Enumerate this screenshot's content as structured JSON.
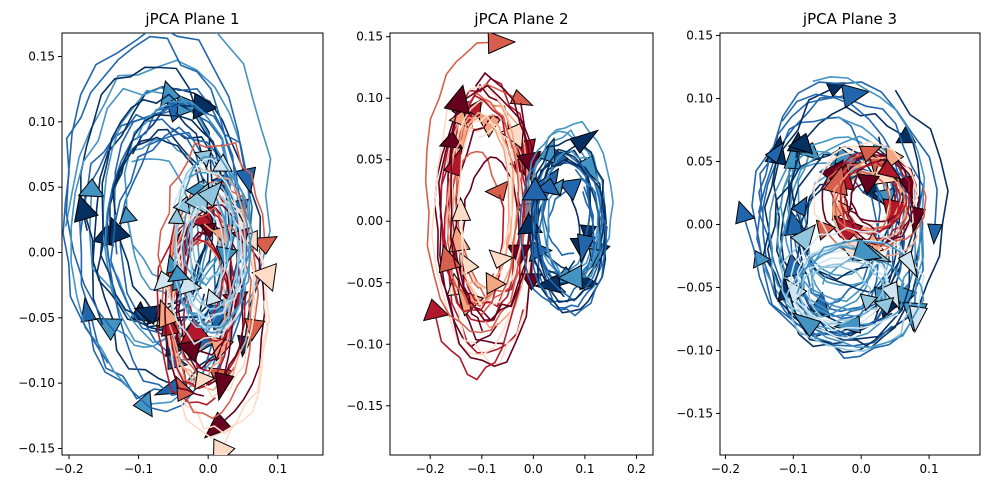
{
  "figure": {
    "colormap_negative": [
      "#67001f",
      "#b2182b",
      "#d6604d",
      "#f4a582",
      "#fddbc7"
    ],
    "colormap_positive": [
      "#053061",
      "#2166ac",
      "#4393c3",
      "#92c5de",
      "#d1e5f0"
    ]
  },
  "chart_data": [
    {
      "type": "line",
      "title": "jPCA Plane 1",
      "xlabel": "",
      "ylabel": "",
      "xlim": [
        -0.21,
        0.165
      ],
      "ylim": [
        -0.155,
        0.168
      ],
      "xticks": [
        -0.2,
        -0.1,
        0.0,
        0.1
      ],
      "xtick_labels": [
        "−0.2",
        "−0.1",
        "0.0",
        "0.1"
      ],
      "yticks": [
        -0.15,
        -0.1,
        -0.05,
        0.0,
        0.05,
        0.1,
        0.15
      ],
      "ytick_labels": [
        "−0.15",
        "−0.10",
        "−0.05",
        "0.00",
        "0.05",
        "0.10",
        "0.15"
      ],
      "grid": false,
      "trajectory_groups": [
        {
          "color_family": "blue",
          "center": [
            -0.06,
            0.02
          ],
          "rx": 0.12,
          "ry": 0.12,
          "count": 26,
          "rotation": "clockwise"
        },
        {
          "color_family": "red",
          "center": [
            0.0,
            -0.03
          ],
          "rx": 0.07,
          "ry": 0.09,
          "count": 22,
          "rotation": "clockwise"
        },
        {
          "color_family": "lightblue",
          "center": [
            0.0,
            0.0
          ],
          "rx": 0.05,
          "ry": 0.06,
          "count": 14,
          "rotation": "clockwise"
        }
      ]
    },
    {
      "type": "line",
      "title": "jPCA Plane 2",
      "xlabel": "",
      "ylabel": "",
      "xlim": [
        -0.278,
        0.232
      ],
      "ylim": [
        -0.19,
        0.153
      ],
      "xticks": [
        -0.2,
        -0.1,
        0.0,
        0.1,
        0.2
      ],
      "xtick_labels": [
        "−0.2",
        "−0.1",
        "0.0",
        "0.1",
        "0.2"
      ],
      "yticks": [
        -0.15,
        -0.1,
        -0.05,
        0.0,
        0.05,
        0.1,
        0.15
      ],
      "ytick_labels": [
        "−0.15",
        "−0.10",
        "−0.05",
        "0.00",
        "0.05",
        "0.10",
        "0.15"
      ],
      "grid": false,
      "trajectory_groups": [
        {
          "color_family": "red",
          "center": [
            -0.1,
            0.0
          ],
          "rx": 0.09,
          "ry": 0.11,
          "count": 26,
          "rotation": "clockwise"
        },
        {
          "color_family": "blue",
          "center": [
            0.06,
            0.0
          ],
          "rx": 0.07,
          "ry": 0.06,
          "count": 20,
          "rotation": "clockwise"
        }
      ]
    },
    {
      "type": "line",
      "title": "jPCA Plane 3",
      "xlabel": "",
      "ylabel": "",
      "xlim": [
        -0.208,
        0.175
      ],
      "ylim": [
        -0.183,
        0.152
      ],
      "xticks": [
        -0.2,
        -0.1,
        0.0,
        0.1
      ],
      "xtick_labels": [
        "−0.2",
        "−0.1",
        "0.0",
        "0.1"
      ],
      "yticks": [
        -0.15,
        -0.1,
        -0.05,
        0.0,
        0.05,
        0.1,
        0.15
      ],
      "ytick_labels": [
        "−0.15",
        "−0.10",
        "−0.05",
        "0.00",
        "0.05",
        "0.10",
        "0.15"
      ],
      "grid": false,
      "trajectory_groups": [
        {
          "color_family": "blue",
          "center": [
            -0.03,
            0.0
          ],
          "rx": 0.12,
          "ry": 0.1,
          "count": 26,
          "rotation": "clockwise"
        },
        {
          "color_family": "red",
          "center": [
            0.02,
            0.02
          ],
          "rx": 0.07,
          "ry": 0.04,
          "count": 18,
          "rotation": "clockwise"
        },
        {
          "color_family": "lightblue",
          "center": [
            -0.02,
            -0.05
          ],
          "rx": 0.09,
          "ry": 0.04,
          "count": 12,
          "rotation": "clockwise"
        }
      ]
    }
  ]
}
